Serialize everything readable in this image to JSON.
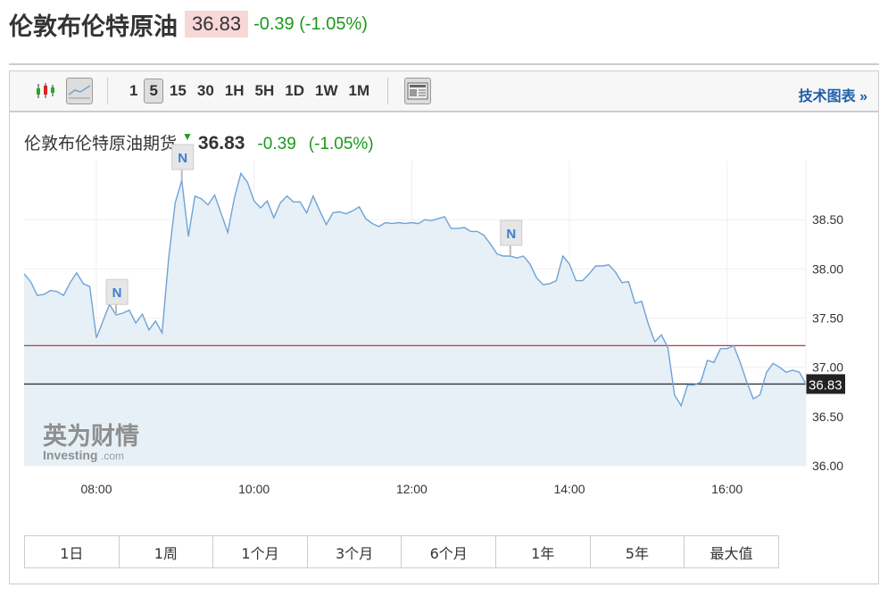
{
  "header": {
    "title": "伦敦布伦特原油",
    "price": "36.83",
    "change": "-0.39 (-1.05%)"
  },
  "toolbar": {
    "chart_types": [
      {
        "icon": "candlestick-icon"
      },
      {
        "icon": "line-chart-icon",
        "selected": true
      }
    ],
    "periods": [
      {
        "label": "1"
      },
      {
        "label": "5",
        "selected": true
      },
      {
        "label": "15"
      },
      {
        "label": "30"
      },
      {
        "label": "1H"
      },
      {
        "label": "5H"
      },
      {
        "label": "1D"
      },
      {
        "label": "1W"
      },
      {
        "label": "1M"
      }
    ],
    "news_icon": "news-icon",
    "tech_chart": "技术图表 »"
  },
  "legend": {
    "name": "伦敦布伦特原油期货",
    "price": "36.83",
    "change": "-0.39",
    "change_pct": "(-1.05%)"
  },
  "watermark": {
    "cn": "英为财情",
    "en": "Investing",
    "suffix": ".com"
  },
  "colors": {
    "line": "#6fa3d6",
    "fill": "#e4eef5",
    "up": "#1a9a1a",
    "ref_red": "#c0393b",
    "ref_black": "#333333"
  },
  "chart_data": {
    "type": "area",
    "xticks": [
      "08:00",
      "10:00",
      "12:00",
      "14:00",
      "16:00"
    ],
    "yticks": [
      "36.00",
      "36.50",
      "37.00",
      "37.50",
      "38.00",
      "38.50"
    ],
    "ylim": [
      36.0,
      39.1
    ],
    "grid": true,
    "x": [
      "07:05",
      "07:10",
      "07:15",
      "07:20",
      "07:25",
      "07:30",
      "07:35",
      "07:40",
      "07:45",
      "07:50",
      "07:55",
      "08:00",
      "08:05",
      "08:10",
      "08:15",
      "08:20",
      "08:25",
      "08:30",
      "08:35",
      "08:40",
      "08:45",
      "08:50",
      "08:55",
      "09:00",
      "09:05",
      "09:10",
      "09:15",
      "09:20",
      "09:25",
      "09:30",
      "09:35",
      "09:40",
      "09:45",
      "09:50",
      "09:55",
      "10:00",
      "10:05",
      "10:10",
      "10:15",
      "10:20",
      "10:25",
      "10:30",
      "10:35",
      "10:40",
      "10:45",
      "10:50",
      "10:55",
      "11:00",
      "11:05",
      "11:10",
      "11:15",
      "11:20",
      "11:25",
      "11:30",
      "11:35",
      "11:40",
      "11:45",
      "11:50",
      "11:55",
      "12:00",
      "12:05",
      "12:10",
      "12:15",
      "12:20",
      "12:25",
      "12:30",
      "12:35",
      "12:40",
      "12:45",
      "12:50",
      "12:55",
      "13:00",
      "13:05",
      "13:10",
      "13:15",
      "13:20",
      "13:25",
      "13:30",
      "13:35",
      "13:40",
      "13:45",
      "13:50",
      "13:55",
      "14:00",
      "14:05",
      "14:10",
      "14:15",
      "14:20",
      "14:25",
      "14:30",
      "14:35",
      "14:40",
      "14:45",
      "14:50",
      "14:55",
      "15:00",
      "15:05",
      "15:10",
      "15:15",
      "15:20",
      "15:25",
      "15:30",
      "15:35",
      "15:40",
      "15:45",
      "15:50",
      "15:55",
      "16:00",
      "16:05",
      "16:10",
      "16:15",
      "16:20",
      "16:25",
      "16:30",
      "16:35",
      "16:40",
      "16:45",
      "16:50",
      "16:55",
      "17:00"
    ],
    "y": [
      37.95,
      37.87,
      37.73,
      37.74,
      37.78,
      37.77,
      37.73,
      37.86,
      37.96,
      37.85,
      37.82,
      37.3,
      37.47,
      37.64,
      37.53,
      37.55,
      37.58,
      37.45,
      37.54,
      37.38,
      37.47,
      37.35,
      38.11,
      38.67,
      38.9,
      38.33,
      38.74,
      38.71,
      38.65,
      38.75,
      38.56,
      38.37,
      38.72,
      38.97,
      38.88,
      38.69,
      38.62,
      38.69,
      38.52,
      38.67,
      38.74,
      38.68,
      38.68,
      38.57,
      38.74,
      38.59,
      38.45,
      38.57,
      38.58,
      38.56,
      38.59,
      38.63,
      38.51,
      38.46,
      38.43,
      38.47,
      38.46,
      38.47,
      38.46,
      38.47,
      38.46,
      38.5,
      38.49,
      38.51,
      38.53,
      38.41,
      38.41,
      38.42,
      38.38,
      38.38,
      38.34,
      38.25,
      38.15,
      38.13,
      38.13,
      38.11,
      38.13,
      38.05,
      37.91,
      37.84,
      37.85,
      37.88,
      38.13,
      38.05,
      37.88,
      37.88,
      37.95,
      38.03,
      38.03,
      38.04,
      37.97,
      37.86,
      37.87,
      37.65,
      37.67,
      37.44,
      37.26,
      37.33,
      37.2,
      36.72,
      36.61,
      36.82,
      36.82,
      36.85,
      37.07,
      37.05,
      37.19,
      37.19,
      37.22,
      37.05,
      36.85,
      36.68,
      36.72,
      36.95,
      37.04,
      37.0,
      36.95,
      36.97,
      36.95,
      36.83
    ],
    "reference_lines": [
      {
        "value": 37.22,
        "color": "#c0393b"
      },
      {
        "value": 36.83,
        "color": "#333333",
        "label": "36.83"
      }
    ],
    "annotations": [
      {
        "x": "08:15",
        "label": "N"
      },
      {
        "x": "09:05",
        "label": "N"
      },
      {
        "x": "13:15",
        "label": "N"
      }
    ]
  },
  "ranges": [
    {
      "label": "1日"
    },
    {
      "label": "1周"
    },
    {
      "label": "1个月"
    },
    {
      "label": "3个月"
    },
    {
      "label": "6个月"
    },
    {
      "label": "1年"
    },
    {
      "label": "5年"
    },
    {
      "label": "最大值"
    }
  ]
}
